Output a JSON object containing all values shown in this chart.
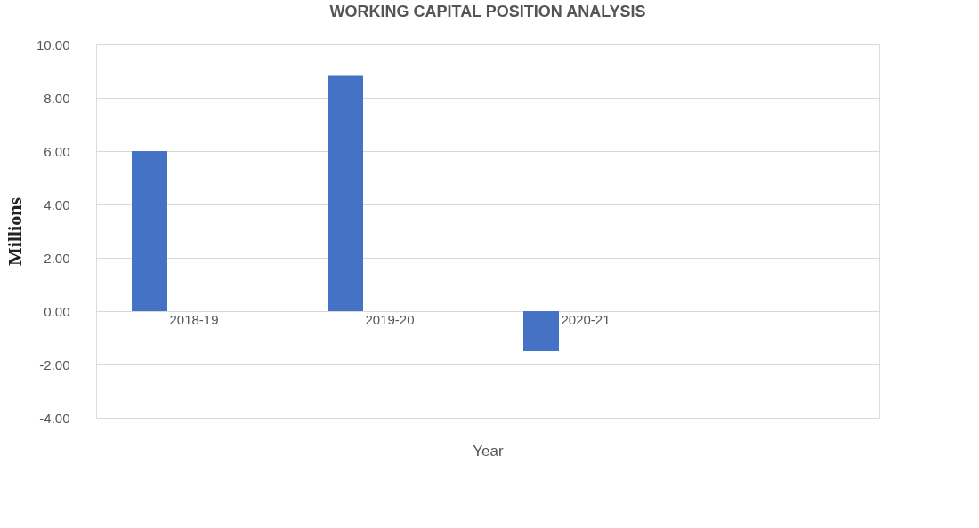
{
  "chart_data": {
    "type": "bar",
    "title": "WORKING CAPITAL POSITION ANALYSIS",
    "xlabel": "Year",
    "ylabel": "Millions",
    "categories": [
      "2018-19",
      "2019-20",
      "2020-21",
      null
    ],
    "values": [
      6.0,
      8.85,
      -1.5,
      null
    ],
    "color": "#4472c4",
    "ylim": [
      -4,
      10
    ],
    "yticks": [
      {
        "value": -4,
        "label": "-4.00"
      },
      {
        "value": -2,
        "label": "-2.00"
      },
      {
        "value": 0,
        "label": "0.00"
      },
      {
        "value": 2,
        "label": "2.00"
      },
      {
        "value": 4,
        "label": "4.00"
      },
      {
        "value": 6,
        "label": "6.00"
      },
      {
        "value": 8,
        "label": "8.00"
      },
      {
        "value": 10,
        "label": "10.00"
      }
    ],
    "grid": "y"
  }
}
